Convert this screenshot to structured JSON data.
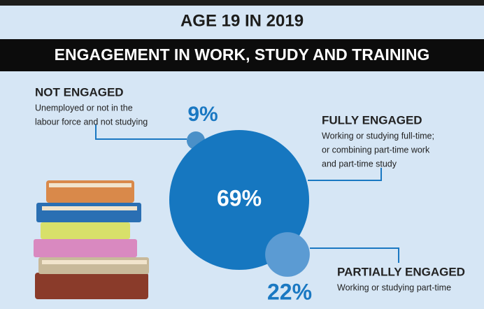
{
  "chart_data": {
    "type": "bubble",
    "title": "AGE 19 IN 2019",
    "subtitle": "ENGAGEMENT IN WORK, STUDY AND TRAINING",
    "categories": [
      "NOT ENGAGED",
      "FULLY ENGAGED",
      "PARTIALLY ENGAGED"
    ],
    "descriptions": [
      [
        "Unemployed or not in the",
        "labour force and not studying"
      ],
      [
        "Working or studying full-time;",
        "or combining part-time work",
        "and part-time study"
      ],
      [
        "Working or studying part-time"
      ]
    ],
    "values": [
      9,
      69,
      22
    ],
    "value_labels": [
      "9%",
      "69%",
      "22%"
    ],
    "colors": [
      "#4a90c8",
      "#1677c0",
      "#5b9bd3"
    ]
  }
}
